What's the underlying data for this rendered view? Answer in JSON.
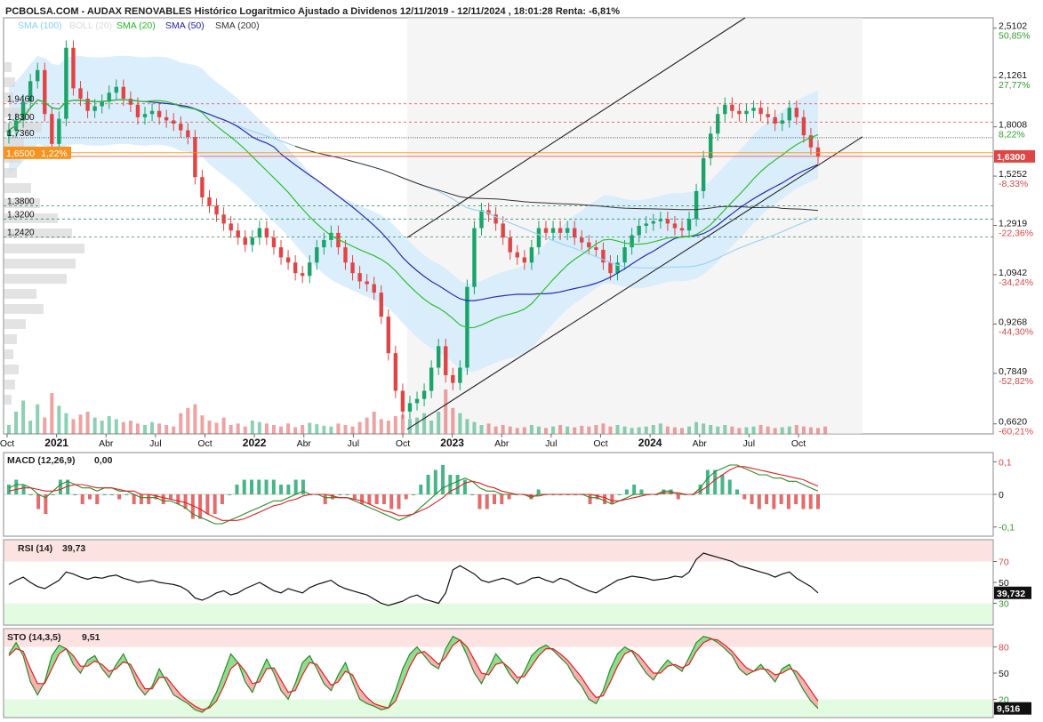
{
  "header": {
    "title": "PCBOLSA.COM - AUDAX RENOVABLES Histórico Logaritmico Ajustado a Dividenos 12/11/2019 - 12/11/2024 , 18:01:28 Renta: -6,81%",
    "legend": [
      {
        "label": "SMA (100)",
        "color": "#87cefa"
      },
      {
        "label": "BOLL (20)",
        "color": "#d9d9d9"
      },
      {
        "label": "SMA (20)",
        "color": "#22b822"
      },
      {
        "label": "SMA (50)",
        "color": "#2222aa"
      },
      {
        "label": "SMA (200)",
        "color": "#333333"
      }
    ]
  },
  "colors": {
    "up": "#1aa36a",
    "down": "#e04545",
    "green_line": "#2ec02e",
    "blue_line": "#2a2ab0",
    "black_line": "#333333",
    "lightblue_line": "#9fd3f5",
    "boll_fill": "#d7ecfb",
    "channel_fill": "#ececec",
    "price_tag": "#f7931e",
    "overbought": "#fde2e2",
    "oversold": "#e3fbe0"
  },
  "chart_data": [
    {
      "type": "candlestick",
      "title": "AUDAX RENOVABLES",
      "scale": "log",
      "ylim": [
        0.64,
        2.6
      ],
      "x_ticks": [
        "Oct",
        "2021",
        "Abr",
        "Jul",
        "Oct",
        "2022",
        "Abr",
        "Jul",
        "Oct",
        "2023",
        "Abr",
        "Jul",
        "Oct",
        "2024",
        "Abr",
        "Jul",
        "Oct"
      ],
      "x_tick_bold": [
        "2021",
        "2022",
        "2023",
        "2024"
      ],
      "y_ticks": [
        {
          "value": 2.5102,
          "label": "2,5102",
          "pct": "50,85%"
        },
        {
          "value": 2.1261,
          "label": "2,1261",
          "pct": "27,77%"
        },
        {
          "value": 1.8008,
          "label": "1,8008",
          "pct": "8,22%"
        },
        {
          "value": 1.5252,
          "label": "1,5252",
          "pct": "-8,33%"
        },
        {
          "value": 1.2919,
          "label": "1,2919",
          "pct": "-22,36%"
        },
        {
          "value": 1.0942,
          "label": "1,0942",
          "pct": "-34,24%"
        },
        {
          "value": 0.9268,
          "label": "0,9268",
          "pct": "-44,30%"
        },
        {
          "value": 0.7849,
          "label": "0,7849",
          "pct": "-52,82%"
        },
        {
          "value": 0.662,
          "label": "0,6620",
          "pct": "-60,21%"
        }
      ],
      "last_price": {
        "value": 1.63,
        "label": "1,6300"
      },
      "reference_tag": {
        "value": 1.65,
        "label": "1,6500",
        "pct": "1,22%"
      },
      "levels": [
        {
          "value": 1.946,
          "label": "1,9460",
          "style": "red"
        },
        {
          "value": 1.83,
          "label": "1,8300",
          "style": "red"
        },
        {
          "value": 1.736,
          "label": "1,7360",
          "style": "black"
        },
        {
          "value": 1.38,
          "label": "1,3800",
          "style": "green"
        },
        {
          "value": 1.32,
          "label": "1,3200",
          "style": "green"
        },
        {
          "value": 1.242,
          "label": "1,2420",
          "style": "green"
        }
      ],
      "closes": [
        1.78,
        1.84,
        1.96,
        2.1,
        2.18,
        1.88,
        1.7,
        1.85,
        2.35,
        2.05,
        1.98,
        1.9,
        1.93,
        1.96,
        2.02,
        2.06,
        1.98,
        1.94,
        1.86,
        1.88,
        1.9,
        1.86,
        1.84,
        1.82,
        1.78,
        1.74,
        1.52,
        1.42,
        1.38,
        1.34,
        1.3,
        1.27,
        1.24,
        1.21,
        1.24,
        1.28,
        1.24,
        1.2,
        1.16,
        1.14,
        1.1,
        1.09,
        1.14,
        1.2,
        1.23,
        1.26,
        1.2,
        1.14,
        1.1,
        1.07,
        1.06,
        1.03,
        0.95,
        0.84,
        0.74,
        0.69,
        0.71,
        0.72,
        0.74,
        0.8,
        0.86,
        0.78,
        0.76,
        0.8,
        1.05,
        1.28,
        1.36,
        1.34,
        1.3,
        1.24,
        1.18,
        1.16,
        1.14,
        1.2,
        1.28,
        1.26,
        1.28,
        1.26,
        1.28,
        1.24,
        1.22,
        1.2,
        1.19,
        1.14,
        1.1,
        1.14,
        1.2,
        1.25,
        1.29,
        1.3,
        1.31,
        1.32,
        1.3,
        1.28,
        1.27,
        1.32,
        1.45,
        1.62,
        1.76,
        1.88,
        1.94,
        1.9,
        1.88,
        1.9,
        1.92,
        1.88,
        1.86,
        1.82,
        1.84,
        1.92,
        1.86,
        1.75,
        1.68,
        1.63
      ],
      "volumes": [
        12,
        30,
        45,
        18,
        40,
        22,
        55,
        38,
        28,
        20,
        26,
        30,
        22,
        18,
        24,
        20,
        16,
        18,
        14,
        12,
        16,
        14,
        12,
        10,
        28,
        35,
        40,
        25,
        18,
        15,
        22,
        12,
        14,
        10,
        18,
        16,
        14,
        12,
        10,
        14,
        9,
        12,
        15,
        13,
        11,
        10,
        14,
        12,
        10,
        16,
        22,
        30,
        20,
        18,
        24,
        26,
        20,
        22,
        28,
        18,
        30,
        60,
        35,
        28,
        20,
        16,
        12,
        14,
        10,
        12,
        10,
        8,
        9,
        12,
        10,
        8,
        10,
        12,
        10,
        9,
        11,
        10,
        12,
        14,
        10,
        12,
        10,
        8,
        9,
        10,
        12,
        14,
        10,
        9,
        8,
        10,
        16,
        14,
        12,
        10,
        12,
        10,
        8,
        9,
        10,
        12,
        10,
        8,
        9,
        10,
        12,
        10,
        9,
        8,
        10
      ],
      "channel": {
        "lower_start": 0.65,
        "lower_end": 1.64,
        "upper_start": 1.24,
        "upper_end": 2.6
      }
    },
    {
      "type": "bar",
      "title": "MACD (12,26,9)",
      "title_value": "0,00",
      "y_ticks": [
        "0,1",
        "0",
        "-0,1"
      ],
      "ylim": [
        -0.12,
        0.12
      ],
      "macd": [
        0.02,
        0.03,
        0.03,
        0.02,
        0.0,
        -0.01,
        0.01,
        0.03,
        0.04,
        0.03,
        0.02,
        0.02,
        0.01,
        0.02,
        0.02,
        0.01,
        0.01,
        0.0,
        -0.01,
        -0.01,
        -0.01,
        -0.02,
        -0.02,
        -0.03,
        -0.04,
        -0.06,
        -0.07,
        -0.08,
        -0.09,
        -0.09,
        -0.08,
        -0.07,
        -0.06,
        -0.05,
        -0.04,
        -0.03,
        -0.02,
        -0.02,
        -0.01,
        0.0,
        0.01,
        0.0,
        0.0,
        -0.01,
        -0.01,
        -0.01,
        -0.01,
        -0.02,
        -0.03,
        -0.04,
        -0.05,
        -0.06,
        -0.07,
        -0.08,
        -0.07,
        -0.06,
        -0.04,
        -0.02,
        0.0,
        0.02,
        0.03,
        0.04,
        0.05,
        0.04,
        0.02,
        0.01,
        0.01,
        0.0,
        0.0,
        0.0,
        0.0,
        -0.01,
        0.0,
        0.0,
        0.0,
        0.0,
        0.0,
        0.0,
        0.0,
        -0.01,
        -0.01,
        -0.02,
        -0.03,
        -0.02,
        -0.01,
        0.0,
        0.0,
        0.0,
        0.0,
        0.01,
        0.01,
        0.0,
        0.0,
        0.0,
        0.02,
        0.05,
        0.07,
        0.08,
        0.09,
        0.09,
        0.08,
        0.07,
        0.06,
        0.06,
        0.05,
        0.05,
        0.04,
        0.04,
        0.03,
        0.02,
        0.01
      ],
      "signal": [
        0.01,
        0.015,
        0.02,
        0.02,
        0.015,
        0.01,
        0.01,
        0.015,
        0.025,
        0.03,
        0.03,
        0.025,
        0.02,
        0.02,
        0.02,
        0.015,
        0.01,
        0.01,
        0.0,
        0.0,
        -0.005,
        -0.01,
        -0.015,
        -0.02,
        -0.025,
        -0.035,
        -0.045,
        -0.06,
        -0.07,
        -0.08,
        -0.08,
        -0.08,
        -0.075,
        -0.065,
        -0.055,
        -0.045,
        -0.035,
        -0.03,
        -0.02,
        -0.015,
        -0.005,
        0.0,
        0.0,
        0.0,
        -0.005,
        -0.01,
        -0.01,
        -0.015,
        -0.02,
        -0.03,
        -0.04,
        -0.05,
        -0.055,
        -0.065,
        -0.065,
        -0.06,
        -0.05,
        -0.04,
        -0.025,
        -0.01,
        0.01,
        0.02,
        0.035,
        0.04,
        0.035,
        0.025,
        0.02,
        0.01,
        0.005,
        0.0,
        0.0,
        -0.005,
        -0.005,
        0.0,
        0.0,
        0.0,
        0.0,
        0.0,
        0.0,
        0.0,
        -0.005,
        -0.01,
        -0.02,
        -0.02,
        -0.015,
        -0.01,
        -0.005,
        0.0,
        0.0,
        0.005,
        0.005,
        0.005,
        0.0,
        0.0,
        0.01,
        0.025,
        0.045,
        0.06,
        0.075,
        0.085,
        0.085,
        0.08,
        0.075,
        0.07,
        0.065,
        0.06,
        0.055,
        0.05,
        0.045,
        0.035,
        0.025
      ]
    },
    {
      "type": "line",
      "title": "RSI (14)",
      "title_value": "39,73",
      "last_label": "39,732",
      "y_ticks": [
        "70",
        "50",
        "30"
      ],
      "ylim": [
        10,
        90
      ],
      "values": [
        48,
        52,
        55,
        50,
        46,
        44,
        48,
        52,
        60,
        58,
        55,
        53,
        55,
        54,
        56,
        57,
        54,
        52,
        50,
        51,
        52,
        50,
        49,
        48,
        46,
        42,
        35,
        33,
        36,
        40,
        42,
        38,
        40,
        44,
        47,
        50,
        46,
        42,
        40,
        44,
        42,
        40,
        45,
        48,
        50,
        52,
        47,
        44,
        42,
        40,
        38,
        34,
        30,
        28,
        30,
        32,
        36,
        38,
        34,
        32,
        30,
        40,
        62,
        66,
        62,
        58,
        52,
        50,
        52,
        54,
        52,
        48,
        50,
        54,
        55,
        52,
        50,
        54,
        52,
        48,
        45,
        42,
        40,
        44,
        48,
        52,
        54,
        56,
        55,
        54,
        52,
        53,
        54,
        56,
        55,
        60,
        72,
        78,
        76,
        74,
        72,
        70,
        66,
        64,
        62,
        60,
        58,
        55,
        58,
        60,
        54,
        50,
        46,
        40
      ],
      "overbought": 70,
      "oversold": 30
    },
    {
      "type": "line",
      "title": "STO (14,3,5)",
      "title_value": "9,51",
      "last_label": "9,516",
      "y_ticks": [
        "80",
        "50",
        "20"
      ],
      "ylim": [
        0,
        100
      ],
      "k": [
        72,
        85,
        70,
        40,
        25,
        40,
        70,
        82,
        78,
        60,
        50,
        65,
        70,
        55,
        45,
        60,
        72,
        55,
        35,
        25,
        35,
        55,
        40,
        25,
        20,
        15,
        8,
        5,
        12,
        28,
        50,
        72,
        62,
        40,
        28,
        48,
        66,
        50,
        30,
        20,
        38,
        62,
        70,
        55,
        38,
        30,
        48,
        62,
        40,
        20,
        15,
        12,
        8,
        10,
        30,
        55,
        72,
        80,
        70,
        60,
        55,
        78,
        92,
        88,
        70,
        50,
        38,
        55,
        72,
        62,
        48,
        38,
        52,
        70,
        78,
        82,
        76,
        68,
        60,
        45,
        35,
        20,
        15,
        30,
        55,
        72,
        80,
        75,
        62,
        50,
        42,
        55,
        65,
        58,
        52,
        68,
        85,
        92,
        90,
        85,
        78,
        70,
        55,
        48,
        52,
        60,
        50,
        40,
        55,
        60,
        45,
        30,
        18,
        9.5
      ],
      "d": [
        70,
        78,
        75,
        55,
        38,
        38,
        55,
        72,
        78,
        70,
        58,
        58,
        64,
        60,
        52,
        55,
        63,
        60,
        45,
        32,
        32,
        45,
        45,
        35,
        25,
        18,
        12,
        8,
        10,
        18,
        35,
        55,
        62,
        52,
        38,
        40,
        55,
        56,
        42,
        28,
        30,
        48,
        62,
        60,
        48,
        36,
        40,
        52,
        48,
        32,
        22,
        15,
        12,
        10,
        18,
        38,
        58,
        72,
        75,
        68,
        60,
        68,
        82,
        88,
        80,
        65,
        50,
        48,
        60,
        62,
        55,
        45,
        46,
        58,
        70,
        78,
        78,
        72,
        65,
        55,
        45,
        32,
        22,
        24,
        40,
        58,
        72,
        76,
        70,
        60,
        50,
        50,
        58,
        60,
        56,
        60,
        75,
        85,
        89,
        88,
        82,
        75,
        65,
        56,
        52,
        55,
        54,
        48,
        50,
        55,
        52,
        42,
        30,
        18
      ],
      "overbought": 80,
      "oversold": 20
    }
  ]
}
